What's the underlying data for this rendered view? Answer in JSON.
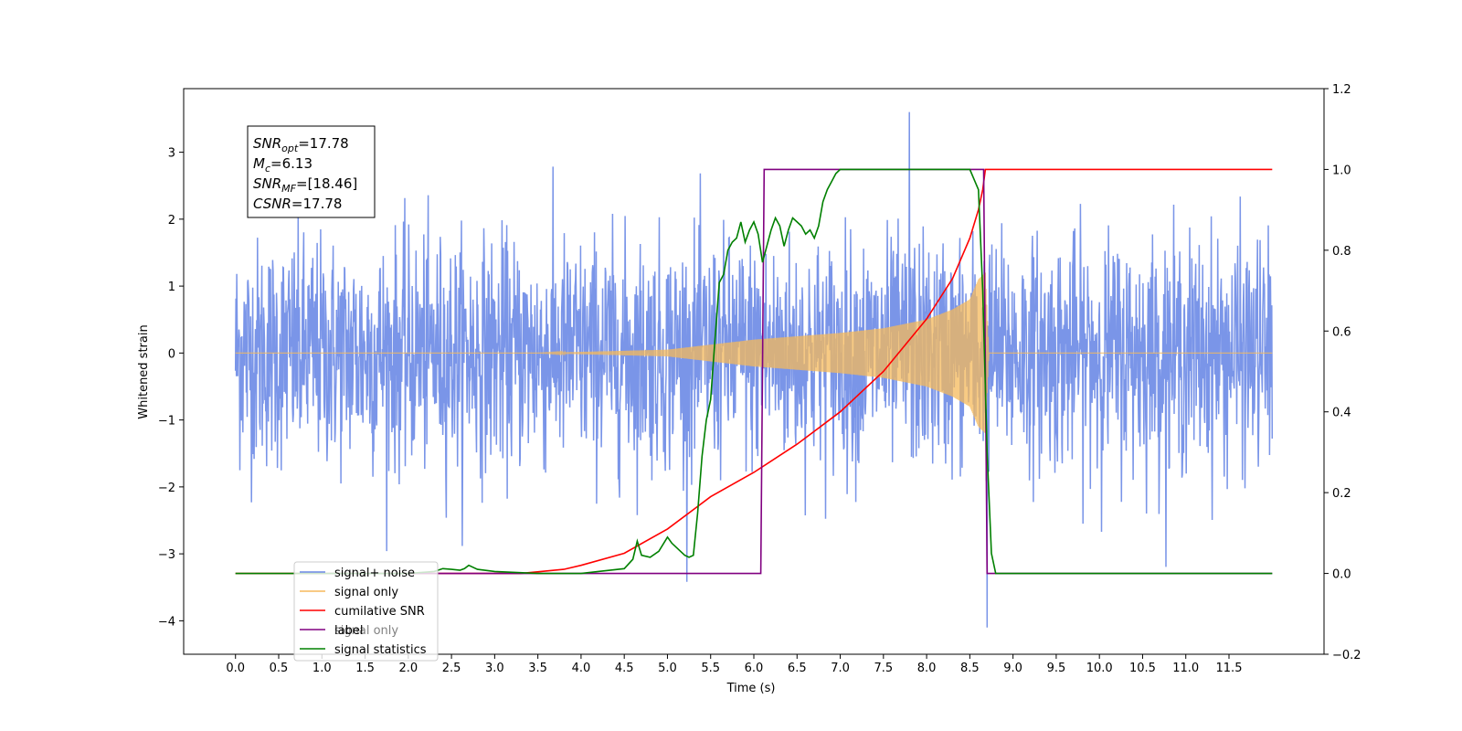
{
  "chart_data": {
    "type": "line",
    "xlabel": "Time (s)",
    "ylabel": "Whitened strain",
    "xlim": [
      -0.6,
      12.6
    ],
    "ylim": [
      -4.5,
      3.95
    ],
    "y2lim": [
      -0.2,
      1.2
    ],
    "x_ticks": [
      "0.0",
      "0.5",
      "1.0",
      "1.5",
      "2.0",
      "2.5",
      "3.0",
      "3.5",
      "4.0",
      "4.5",
      "5.0",
      "5.5",
      "6.0",
      "6.5",
      "7.0",
      "7.5",
      "8.0",
      "8.5",
      "9.0",
      "9.5",
      "10.0",
      "10.5",
      "11.0",
      "11.5"
    ],
    "y_ticks": [
      "3",
      "2",
      "1",
      "0",
      "−1",
      "−2",
      "−3",
      "−4"
    ],
    "y2_ticks": [
      "1.2",
      "1.0",
      "0.8",
      "0.6",
      "0.4",
      "0.2",
      "0.0",
      "−0.2"
    ],
    "annotation": {
      "lines": [
        {
          "base": "SNR",
          "sub": "opt",
          "value": "=17.78"
        },
        {
          "base": "M",
          "sub": "c",
          "value": "=6.13"
        },
        {
          "base": "SNR",
          "sub": "MF",
          "value": "=[18.46]"
        },
        {
          "base": "CSNR",
          "sub": "",
          "value": "=17.78"
        }
      ]
    },
    "legend": {
      "location": "lower-left",
      "entries": [
        "signal+ noise",
        "signal only",
        "cumilative SNR",
        "label",
        "signal statistics"
      ],
      "hidden_text": "signal only"
    },
    "series": [
      {
        "name": "signal+ noise",
        "axis": "left",
        "color": "#6b8ae6",
        "x_range": [
          0,
          12
        ],
        "amplitude_std": 0.85,
        "peak_max": 3.6,
        "peak_min": -4.1
      },
      {
        "name": "signal only",
        "axis": "left",
        "color": "#f5b95b",
        "x_range": [
          0,
          12
        ],
        "chirp_start": 3.5,
        "merger": 8.68,
        "envelope": [
          [
            3.5,
            0.0
          ],
          [
            5.0,
            0.05
          ],
          [
            6.0,
            0.2
          ],
          [
            7.0,
            0.3
          ],
          [
            7.5,
            0.37
          ],
          [
            8.0,
            0.5
          ],
          [
            8.3,
            0.65
          ],
          [
            8.5,
            0.8
          ],
          [
            8.6,
            1.1
          ],
          [
            8.68,
            1.2
          ],
          [
            8.72,
            0.0
          ]
        ]
      },
      {
        "name": "cumilative SNR",
        "axis": "right",
        "color": "#ff0000",
        "x": [
          0,
          3.3,
          3.8,
          4.0,
          4.5,
          5.0,
          5.5,
          6.0,
          6.5,
          7.0,
          7.5,
          8.0,
          8.3,
          8.5,
          8.6,
          8.65,
          8.68,
          12.0
        ],
        "y": [
          0.0,
          0.0,
          0.01,
          0.02,
          0.05,
          0.11,
          0.19,
          0.25,
          0.32,
          0.4,
          0.5,
          0.63,
          0.73,
          0.83,
          0.9,
          0.95,
          1.0,
          1.0
        ]
      },
      {
        "name": "label",
        "axis": "right",
        "color": "#800080",
        "x": [
          1.1,
          6.08,
          6.12,
          8.66,
          8.7,
          12.0
        ],
        "y": [
          0.0,
          0.0,
          1.0,
          1.0,
          0.0,
          0.0
        ]
      },
      {
        "name": "signal statistics",
        "axis": "right",
        "color": "#008000",
        "x": [
          0,
          2.0,
          2.3,
          2.4,
          2.5,
          2.6,
          2.65,
          2.7,
          2.8,
          3.0,
          3.5,
          4.0,
          4.2,
          4.5,
          4.6,
          4.65,
          4.7,
          4.8,
          4.9,
          5.0,
          5.05,
          5.1,
          5.2,
          5.25,
          5.3,
          5.35,
          5.4,
          5.45,
          5.5,
          5.55,
          5.6,
          5.65,
          5.7,
          5.75,
          5.8,
          5.85,
          5.9,
          5.95,
          6.0,
          6.05,
          6.1,
          6.15,
          6.2,
          6.25,
          6.3,
          6.35,
          6.4,
          6.45,
          6.5,
          6.55,
          6.6,
          6.65,
          6.7,
          6.75,
          6.8,
          6.85,
          6.9,
          6.95,
          7.0,
          7.05,
          7.1,
          7.2,
          7.3,
          7.4,
          7.5,
          7.6,
          8.0,
          8.5,
          8.6,
          8.65,
          8.7,
          8.75,
          8.8,
          9.0,
          12.0
        ],
        "y": [
          0.0,
          0.0,
          0.005,
          0.012,
          0.01,
          0.008,
          0.012,
          0.02,
          0.01,
          0.005,
          0.0,
          0.0,
          0.005,
          0.012,
          0.035,
          0.08,
          0.045,
          0.04,
          0.055,
          0.09,
          0.075,
          0.065,
          0.045,
          0.04,
          0.045,
          0.15,
          0.29,
          0.38,
          0.43,
          0.58,
          0.72,
          0.74,
          0.8,
          0.82,
          0.83,
          0.87,
          0.82,
          0.85,
          0.87,
          0.84,
          0.77,
          0.81,
          0.85,
          0.88,
          0.86,
          0.81,
          0.85,
          0.88,
          0.87,
          0.86,
          0.84,
          0.85,
          0.83,
          0.86,
          0.92,
          0.95,
          0.97,
          0.99,
          1.0,
          1.0,
          1.0,
          1.0,
          1.0,
          1.0,
          1.0,
          1.0,
          1.0,
          1.0,
          0.95,
          0.7,
          0.3,
          0.05,
          0.0,
          0.0,
          0.0
        ]
      }
    ]
  }
}
